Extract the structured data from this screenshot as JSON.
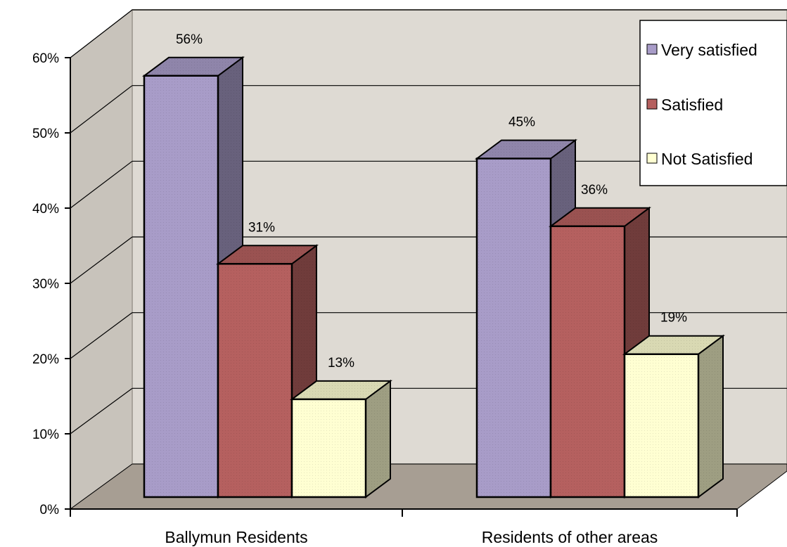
{
  "chart_data": {
    "type": "bar",
    "categories": [
      "Ballymun Residents",
      "Residents of other areas"
    ],
    "series": [
      {
        "name": "Very satisfied",
        "values": [
          56,
          45
        ],
        "labels": [
          "56%",
          "45%"
        ],
        "color": "#a89cc8"
      },
      {
        "name": "Satisfied",
        "values": [
          31,
          36
        ],
        "labels": [
          "31%",
          "36%"
        ],
        "color": "#b5605f"
      },
      {
        "name": "Not Satisfied",
        "values": [
          13,
          19
        ],
        "labels": [
          "13%",
          "19%"
        ],
        "color": "#ffffd2"
      }
    ],
    "y_ticks": [
      "0%",
      "10%",
      "20%",
      "30%",
      "40%",
      "50%",
      "60%"
    ],
    "ylim": [
      0,
      60
    ],
    "y_unit": "%",
    "grid": true,
    "legend_position": "top-right",
    "three_d": true
  }
}
